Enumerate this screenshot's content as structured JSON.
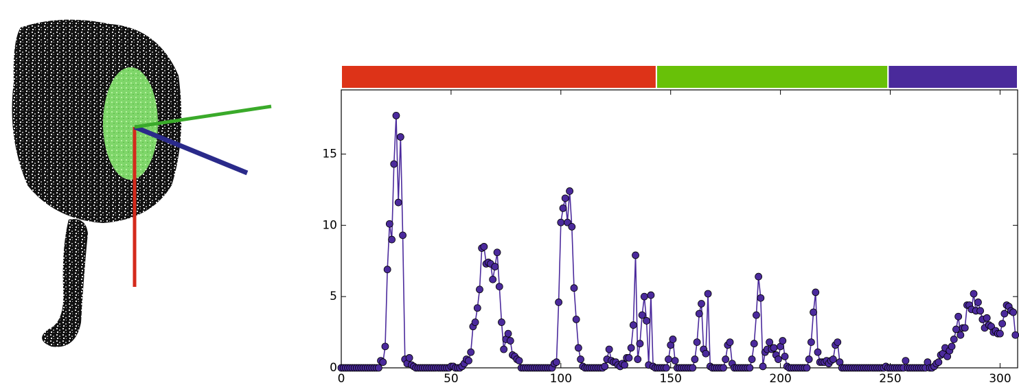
{
  "chart_data": {
    "type": "line",
    "color": "#4b2a9c",
    "marker": true,
    "xlim": [
      0,
      308
    ],
    "ylim": [
      0,
      19.5
    ],
    "xticks": [
      0,
      50,
      100,
      150,
      200,
      250,
      300
    ],
    "yticks": [
      0,
      5,
      10,
      15
    ],
    "grid": false,
    "segments": [
      {
        "color": "#dd3318",
        "start": 0,
        "end": 143.5
      },
      {
        "color": "#68c108",
        "start": 143.5,
        "end": 249
      },
      {
        "color": "#4a2a9b",
        "start": 249,
        "end": 308
      }
    ],
    "x": [
      0,
      1,
      2,
      3,
      4,
      5,
      6,
      7,
      8,
      9,
      10,
      11,
      12,
      13,
      14,
      15,
      16,
      17,
      18,
      19,
      20,
      21,
      22,
      23,
      24,
      25,
      26,
      27,
      28,
      29,
      30,
      31,
      32,
      33,
      34,
      35,
      36,
      37,
      38,
      39,
      40,
      41,
      42,
      43,
      44,
      45,
      46,
      47,
      48,
      49,
      50,
      51,
      52,
      53,
      54,
      55,
      56,
      57,
      58,
      59,
      60,
      61,
      62,
      63,
      64,
      65,
      66,
      67,
      68,
      69,
      70,
      71,
      72,
      73,
      74,
      75,
      76,
      77,
      78,
      79,
      80,
      81,
      82,
      83,
      84,
      85,
      86,
      87,
      88,
      89,
      90,
      91,
      92,
      93,
      94,
      95,
      96,
      97,
      98,
      99,
      100,
      101,
      102,
      103,
      104,
      105,
      106,
      107,
      108,
      109,
      110,
      111,
      112,
      113,
      114,
      115,
      116,
      117,
      118,
      119,
      120,
      121,
      122,
      123,
      124,
      125,
      126,
      127,
      128,
      129,
      130,
      131,
      132,
      133,
      134,
      135,
      136,
      137,
      138,
      139,
      140,
      141,
      142,
      143,
      144,
      145,
      146,
      147,
      148,
      149,
      150,
      151,
      152,
      153,
      154,
      155,
      156,
      157,
      158,
      159,
      160,
      161,
      162,
      163,
      164,
      165,
      166,
      167,
      168,
      169,
      170,
      171,
      172,
      173,
      174,
      175,
      176,
      177,
      178,
      179,
      180,
      181,
      182,
      183,
      184,
      185,
      186,
      187,
      188,
      189,
      190,
      191,
      192,
      193,
      194,
      195,
      196,
      197,
      198,
      199,
      200,
      201,
      202,
      203,
      204,
      205,
      206,
      207,
      208,
      209,
      210,
      211,
      212,
      213,
      214,
      215,
      216,
      217,
      218,
      219,
      220,
      221,
      222,
      223,
      224,
      225,
      226,
      227,
      228,
      229,
      230,
      231,
      232,
      233,
      234,
      235,
      236,
      237,
      238,
      239,
      240,
      241,
      242,
      243,
      244,
      245,
      246,
      247,
      248,
      249,
      250,
      251,
      252,
      253,
      254,
      255,
      256,
      257,
      258,
      259,
      260,
      261,
      262,
      263,
      264,
      265,
      266,
      267,
      268,
      269,
      270,
      271,
      272,
      273,
      274,
      275,
      276,
      277,
      278,
      279,
      280,
      281,
      282,
      283,
      284,
      285,
      286,
      287,
      288,
      289,
      290,
      291,
      292,
      293,
      294,
      295,
      296,
      297,
      298,
      299,
      300,
      301,
      302,
      303,
      304,
      305,
      306,
      307
    ],
    "values": [
      0,
      0,
      0,
      0,
      0,
      0,
      0,
      0,
      0,
      0,
      0,
      0,
      0,
      0,
      0,
      0,
      0,
      0,
      0.5,
      0.4,
      1.5,
      6.9,
      10.1,
      9.0,
      14.3,
      17.7,
      11.6,
      16.2,
      9.3,
      0.6,
      0.3,
      0.7,
      0.2,
      0.1,
      0,
      0,
      0,
      0,
      0,
      0,
      0,
      0,
      0,
      0,
      0,
      0,
      0,
      0,
      0,
      0,
      0.1,
      0.1,
      0,
      0,
      0,
      0.1,
      0.3,
      0.6,
      0.5,
      1.1,
      2.9,
      3.2,
      4.2,
      5.5,
      8.4,
      8.5,
      7.3,
      7.4,
      7.3,
      6.2,
      7.1,
      8.1,
      5.7,
      3.2,
      1.3,
      2.0,
      2.4,
      1.9,
      0.9,
      0.8,
      0.6,
      0.5,
      0,
      0,
      0,
      0,
      0,
      0,
      0,
      0,
      0,
      0,
      0,
      0,
      0,
      0,
      0,
      0.3,
      0.4,
      4.6,
      10.2,
      11.2,
      11.9,
      10.2,
      12.4,
      9.9,
      5.6,
      3.4,
      1.4,
      0.6,
      0.1,
      0,
      0,
      0,
      0,
      0,
      0,
      0,
      0,
      0,
      0.1,
      0.6,
      1.3,
      0.5,
      0.4,
      0.4,
      0.2,
      0.1,
      0.3,
      0.2,
      0.7,
      0.7,
      1.4,
      3.0,
      7.9,
      0.6,
      1.7,
      3.7,
      5.0,
      3.3,
      0.2,
      5.1,
      0.1,
      0,
      0,
      0,
      0,
      0,
      0,
      0.6,
      1.6,
      2.0,
      0.5,
      0,
      0,
      0,
      0,
      0,
      0,
      0,
      0,
      0.6,
      1.8,
      3.8,
      4.5,
      1.3,
      1.0,
      5.2,
      0.1,
      0,
      0,
      0,
      0,
      0,
      0,
      0.6,
      1.6,
      1.8,
      0.3,
      0,
      0,
      0,
      0,
      0,
      0,
      0,
      0,
      0.6,
      1.7,
      3.7,
      6.4,
      4.9,
      0.1,
      1.1,
      1.3,
      1.8,
      1.3,
      1.4,
      0.9,
      0.6,
      1.5,
      1.9,
      0.8,
      0.1,
      0,
      0,
      0,
      0,
      0,
      0,
      0,
      0,
      0,
      0.6,
      1.8,
      3.9,
      5.3,
      1.1,
      0.4,
      0.4,
      0.4,
      0.5,
      0.3,
      0.5,
      0.6,
      1.6,
      1.8,
      0.4,
      0,
      0,
      0,
      0,
      0,
      0,
      0,
      0,
      0,
      0,
      0,
      0,
      0,
      0,
      0,
      0,
      0,
      0,
      0,
      0,
      0.1,
      0,
      0,
      0,
      0,
      0,
      0,
      0,
      0,
      0.5,
      0,
      0,
      0,
      0,
      0,
      0,
      0,
      0,
      0,
      0.4,
      0,
      0,
      0.1,
      0.3,
      0.4,
      0.9,
      1.0,
      1.4,
      0.8,
      1.2,
      1.5,
      2.0,
      2.7,
      3.6,
      2.3,
      2.8,
      2.8,
      4.4,
      4.4,
      4.1,
      5.2,
      4.0,
      4.6,
      4.0,
      3.4,
      2.8,
      3.5,
      3.0,
      2.9,
      2.5,
      2.6,
      2.4,
      2.4,
      3.1,
      3.8,
      4.4,
      4.3,
      4.0,
      3.9,
      2.3
    ]
  }
}
